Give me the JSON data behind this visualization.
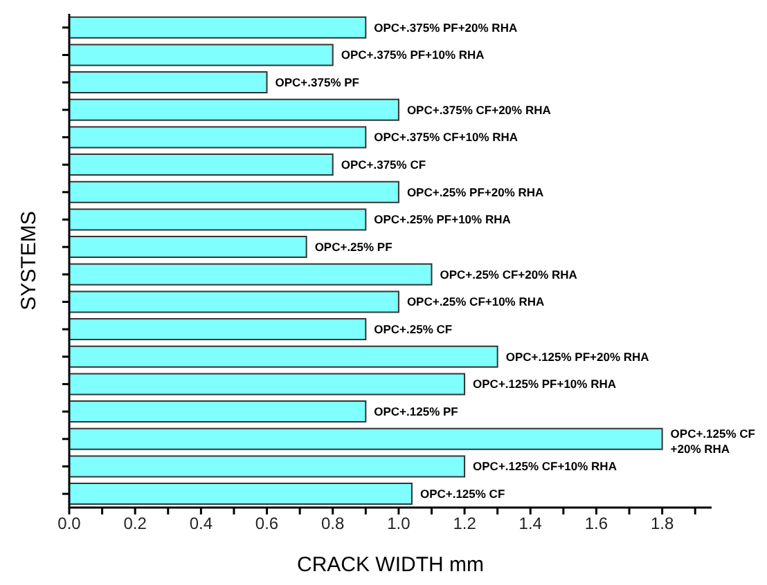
{
  "chart_data": {
    "type": "bar",
    "orientation": "horizontal",
    "xlabel": "CRACK WIDTH mm",
    "ylabel": "SYSTEMS",
    "categories": [
      "OPC+.375% PF+20% RHA",
      "OPC+.375% PF+10% RHA",
      "OPC+.375% PF",
      "OPC+.375% CF+20% RHA",
      "OPC+.375% CF+10% RHA",
      "OPC+.375% CF",
      "OPC+.25% PF+20% RHA",
      "OPC+.25% PF+10% RHA",
      "OPC+.25% PF",
      "OPC+.25% CF+20% RHA",
      "OPC+.25% CF+10% RHA",
      "OPC+.25% CF",
      "OPC+.125% PF+20% RHA",
      "OPC+.125% PF+10% RHA",
      "OPC+.125% PF",
      "OPC+.125% CF +20% RHA",
      "OPC+.125% CF+10% RHA",
      "OPC+.125% CF"
    ],
    "values": [
      0.9,
      0.8,
      0.6,
      1.0,
      0.9,
      0.8,
      1.0,
      0.9,
      0.72,
      1.1,
      1.0,
      0.9,
      1.3,
      1.2,
      0.9,
      1.8,
      1.2,
      1.04
    ],
    "color": "#80ffff",
    "xlim": [
      0,
      1.95
    ],
    "xticks": [
      {
        "value": 0,
        "label": "0.0"
      },
      {
        "value": 0.1,
        "label": null
      },
      {
        "value": 0.2,
        "label": "0.2"
      },
      {
        "value": 0.3,
        "label": null
      },
      {
        "value": 0.4,
        "label": "0.4"
      },
      {
        "value": 0.5,
        "label": null
      },
      {
        "value": 0.6,
        "label": "0.6"
      },
      {
        "value": 0.7,
        "label": null
      },
      {
        "value": 0.8,
        "label": "0.8"
      },
      {
        "value": 0.9,
        "label": null
      },
      {
        "value": 1,
        "label": "1.0"
      },
      {
        "value": 1.1,
        "label": null
      },
      {
        "value": 1.2,
        "label": "1.2"
      },
      {
        "value": 1.3,
        "label": null
      },
      {
        "value": 1.4,
        "label": "1.4"
      },
      {
        "value": 1.5,
        "label": null
      },
      {
        "value": 1.6,
        "label": "1.6"
      },
      {
        "value": 1.7,
        "label": null
      },
      {
        "value": 1.8,
        "label": "1.8"
      },
      {
        "value": 1.9,
        "label": null
      }
    ],
    "tick_labels": "x",
    "grid": false
  }
}
